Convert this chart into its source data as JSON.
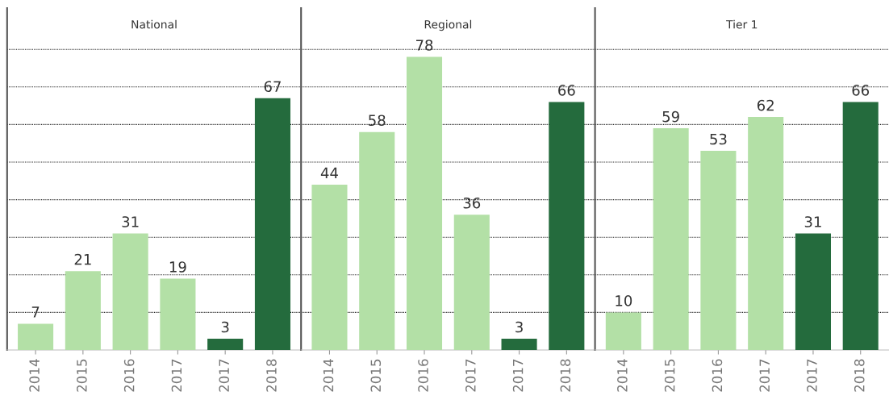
{
  "chart_data": [
    {
      "type": "bar",
      "title": "National",
      "categories": [
        "2014",
        "2015",
        "2016",
        "2017",
        "2017",
        "2018"
      ],
      "values": [
        7,
        21,
        31,
        19,
        3,
        67
      ],
      "colors": [
        "#b3e0a6",
        "#b3e0a6",
        "#b3e0a6",
        "#b3e0a6",
        "#246b3d",
        "#246b3d"
      ],
      "data_labels": true,
      "ylim": [
        0,
        91
      ],
      "yticks": [
        {
          "value": 10,
          "label": null
        },
        {
          "value": 20,
          "label": null
        },
        {
          "value": 30,
          "label": null
        },
        {
          "value": 40,
          "label": null
        },
        {
          "value": 50,
          "label": null
        },
        {
          "value": 60,
          "label": null
        },
        {
          "value": 70,
          "label": null
        },
        {
          "value": 80,
          "label": null
        }
      ],
      "grid": "y",
      "tick_labels": "x"
    },
    {
      "type": "bar",
      "title": "Regional",
      "categories": [
        "2014",
        "2015",
        "2016",
        "2017",
        "2017",
        "2018"
      ],
      "values": [
        44,
        58,
        78,
        36,
        3,
        66
      ],
      "colors": [
        "#b3e0a6",
        "#b3e0a6",
        "#b3e0a6",
        "#b3e0a6",
        "#246b3d",
        "#246b3d"
      ],
      "data_labels": true,
      "ylim": [
        0,
        91
      ],
      "yticks": [
        {
          "value": 10,
          "label": null
        },
        {
          "value": 20,
          "label": null
        },
        {
          "value": 30,
          "label": null
        },
        {
          "value": 40,
          "label": null
        },
        {
          "value": 50,
          "label": null
        },
        {
          "value": 60,
          "label": null
        },
        {
          "value": 70,
          "label": null
        },
        {
          "value": 80,
          "label": null
        }
      ],
      "grid": "y",
      "tick_labels": "x"
    },
    {
      "type": "bar",
      "title": "Tier 1",
      "categories": [
        "2014",
        "2015",
        "2016",
        "2017",
        "2017",
        "2018"
      ],
      "values": [
        10,
        59,
        53,
        62,
        31,
        66
      ],
      "colors": [
        "#b3e0a6",
        "#b3e0a6",
        "#b3e0a6",
        "#b3e0a6",
        "#246b3d",
        "#246b3d"
      ],
      "data_labels": true,
      "ylim": [
        0,
        91
      ],
      "yticks": [
        {
          "value": 10,
          "label": null
        },
        {
          "value": 20,
          "label": null
        },
        {
          "value": 30,
          "label": null
        },
        {
          "value": 40,
          "label": null
        },
        {
          "value": 50,
          "label": null
        },
        {
          "value": 60,
          "label": null
        },
        {
          "value": 70,
          "label": null
        },
        {
          "value": 80,
          "label": null
        }
      ],
      "grid": "y",
      "tick_labels": "x"
    }
  ]
}
